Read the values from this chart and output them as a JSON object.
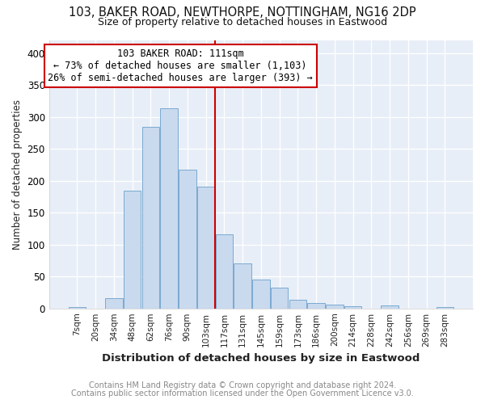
{
  "title1": "103, BAKER ROAD, NEWTHORPE, NOTTINGHAM, NG16 2DP",
  "title2": "Size of property relative to detached houses in Eastwood",
  "xlabel": "Distribution of detached houses by size in Eastwood",
  "ylabel": "Number of detached properties",
  "bar_labels": [
    "7sqm",
    "20sqm",
    "34sqm",
    "48sqm",
    "62sqm",
    "76sqm",
    "90sqm",
    "103sqm",
    "117sqm",
    "131sqm",
    "145sqm",
    "159sqm",
    "173sqm",
    "186sqm",
    "200sqm",
    "214sqm",
    "228sqm",
    "242sqm",
    "256sqm",
    "269sqm",
    "283sqm"
  ],
  "bar_values": [
    2,
    0,
    16,
    184,
    285,
    313,
    217,
    191,
    116,
    71,
    45,
    33,
    13,
    8,
    6,
    3,
    0,
    5,
    0,
    0,
    2
  ],
  "bar_color": "#c9d9ee",
  "bar_edge_color": "#7aaad0",
  "reference_line_x_label": "103sqm",
  "annotation_title": "103 BAKER ROAD: 111sqm",
  "annotation_line1": "← 73% of detached houses are smaller (1,103)",
  "annotation_line2": "26% of semi-detached houses are larger (393) →",
  "annotation_box_edge": "#cc0000",
  "reference_line_color": "#cc0000",
  "ylim": [
    0,
    420
  ],
  "yticks": [
    0,
    50,
    100,
    150,
    200,
    250,
    300,
    350,
    400
  ],
  "footer1": "Contains HM Land Registry data © Crown copyright and database right 2024.",
  "footer2": "Contains public sector information licensed under the Open Government Licence v3.0.",
  "axes_bg_color": "#e8eef7",
  "fig_bg_color": "#ffffff",
  "grid_color": "#ffffff",
  "footer_color": "#888888"
}
